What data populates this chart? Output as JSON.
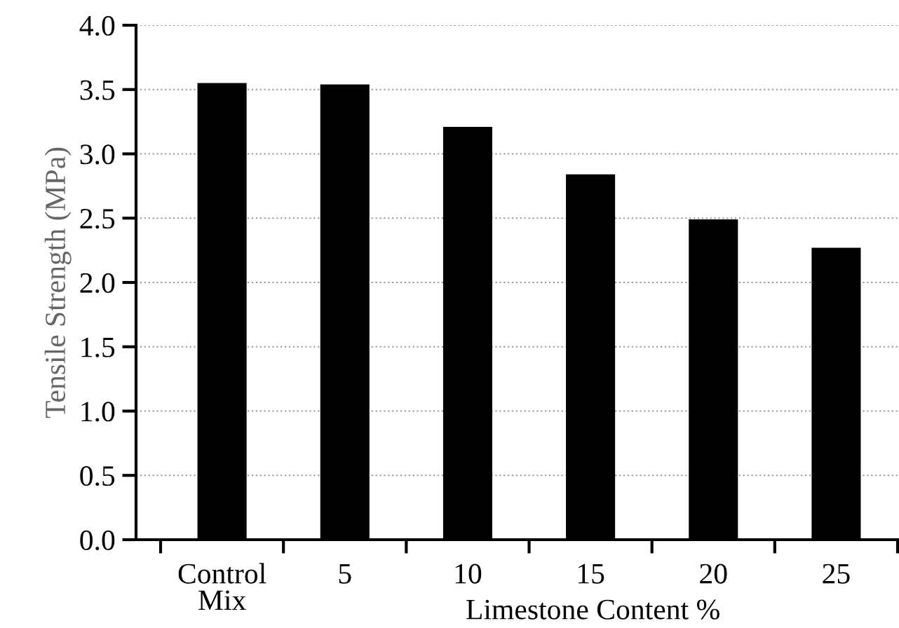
{
  "chart_data": {
    "type": "bar",
    "xlabel": "Limestone Content %",
    "ylabel": "Tensile Strength (MPa)",
    "categories": [
      "Control\nMix",
      "5",
      "10",
      "15",
      "20",
      "25"
    ],
    "values": [
      3.55,
      3.54,
      3.21,
      2.84,
      2.49,
      2.27
    ],
    "color": "#000000",
    "ylim": [
      0,
      4
    ],
    "yticks": [
      {
        "value": 0,
        "label": "0.0"
      },
      0.5,
      {
        "value": 1,
        "label": "1.0"
      },
      1.5,
      {
        "value": 2,
        "label": "2.0"
      },
      2.5,
      {
        "value": 3,
        "label": "3.0"
      },
      3.5,
      {
        "value": 4,
        "label": "4.0"
      }
    ],
    "grid": "y"
  }
}
